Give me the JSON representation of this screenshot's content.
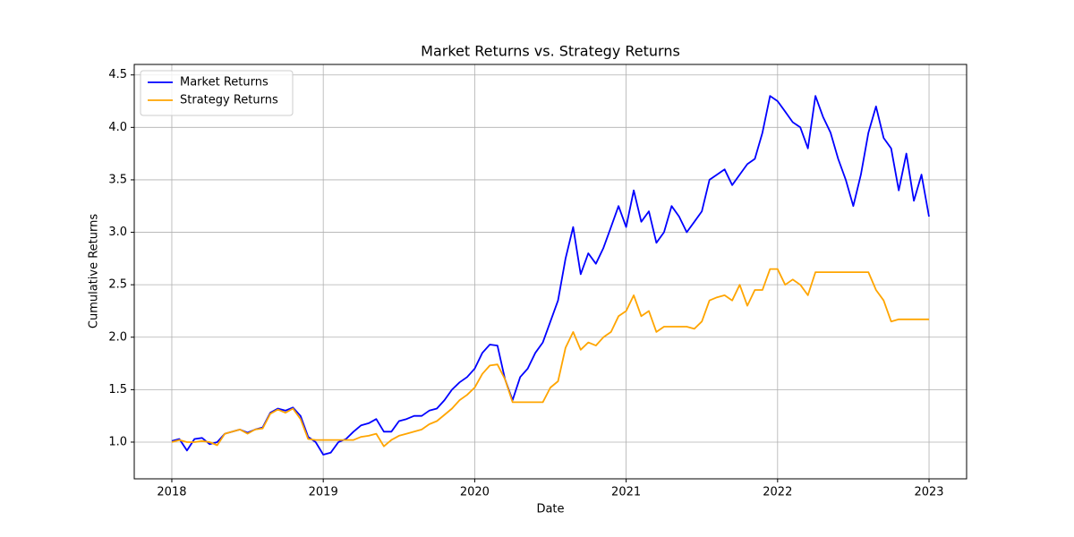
{
  "chart_data": {
    "type": "line",
    "title": "Market Returns vs. Strategy Returns",
    "x_label": "Date",
    "y_label": "Cumulative Returns",
    "x": [
      2018.0,
      2018.05,
      2018.1,
      2018.15,
      2018.2,
      2018.25,
      2018.3,
      2018.35,
      2018.4,
      2018.45,
      2018.5,
      2018.55,
      2018.6,
      2018.65,
      2018.7,
      2018.75,
      2018.8,
      2018.85,
      2018.9,
      2018.95,
      2019.0,
      2019.05,
      2019.1,
      2019.15,
      2019.2,
      2019.25,
      2019.3,
      2019.35,
      2019.4,
      2019.45,
      2019.5,
      2019.55,
      2019.6,
      2019.65,
      2019.7,
      2019.75,
      2019.8,
      2019.85,
      2019.9,
      2019.95,
      2020.0,
      2020.05,
      2020.1,
      2020.15,
      2020.2,
      2020.25,
      2020.3,
      2020.35,
      2020.4,
      2020.45,
      2020.5,
      2020.55,
      2020.6,
      2020.65,
      2020.7,
      2020.75,
      2020.8,
      2020.85,
      2020.9,
      2020.95,
      2021.0,
      2021.05,
      2021.1,
      2021.15,
      2021.2,
      2021.25,
      2021.3,
      2021.35,
      2021.4,
      2021.45,
      2021.5,
      2021.55,
      2021.6,
      2021.65,
      2021.7,
      2021.75,
      2021.8,
      2021.85,
      2021.9,
      2021.95,
      2022.0,
      2022.05,
      2022.1,
      2022.15,
      2022.2,
      2022.25,
      2022.3,
      2022.35,
      2022.4,
      2022.45,
      2022.5,
      2022.55,
      2022.6,
      2022.65,
      2022.7,
      2022.75,
      2022.8,
      2022.85,
      2022.9,
      2022.95,
      2023.0
    ],
    "series": [
      {
        "name": "Market Returns",
        "color": "#0000ff",
        "values": [
          1.01,
          1.03,
          0.92,
          1.03,
          1.04,
          0.98,
          1.0,
          1.08,
          1.1,
          1.12,
          1.09,
          1.12,
          1.14,
          1.28,
          1.32,
          1.3,
          1.33,
          1.25,
          1.05,
          1.0,
          0.88,
          0.9,
          1.0,
          1.03,
          1.1,
          1.16,
          1.18,
          1.22,
          1.1,
          1.1,
          1.2,
          1.22,
          1.25,
          1.25,
          1.3,
          1.32,
          1.4,
          1.5,
          1.57,
          1.62,
          1.7,
          1.85,
          1.93,
          1.92,
          1.6,
          1.4,
          1.62,
          1.7,
          1.85,
          1.95,
          2.15,
          2.35,
          2.75,
          3.05,
          2.6,
          2.8,
          2.7,
          2.85,
          3.05,
          3.25,
          3.05,
          3.4,
          3.1,
          3.2,
          2.9,
          3.0,
          3.25,
          3.15,
          3.0,
          3.1,
          3.2,
          3.5,
          3.55,
          3.6,
          3.45,
          3.55,
          3.65,
          3.7,
          3.95,
          4.3,
          4.25,
          4.15,
          4.05,
          4.0,
          3.8,
          4.3,
          4.1,
          3.95,
          3.7,
          3.5,
          3.25,
          3.55,
          3.95,
          4.2,
          3.9,
          3.8,
          3.4,
          3.75,
          3.3,
          3.55,
          3.15
        ]
      },
      {
        "name": "Strategy Returns",
        "color": "#ffa500",
        "values": [
          1.0,
          1.02,
          1.0,
          1.0,
          1.01,
          1.0,
          0.97,
          1.08,
          1.1,
          1.12,
          1.08,
          1.12,
          1.13,
          1.27,
          1.31,
          1.28,
          1.32,
          1.22,
          1.03,
          1.02,
          1.02,
          1.02,
          1.02,
          1.02,
          1.02,
          1.05,
          1.06,
          1.08,
          0.96,
          1.02,
          1.06,
          1.08,
          1.1,
          1.12,
          1.17,
          1.2,
          1.26,
          1.32,
          1.4,
          1.45,
          1.52,
          1.65,
          1.73,
          1.74,
          1.6,
          1.38,
          1.38,
          1.38,
          1.38,
          1.38,
          1.52,
          1.58,
          1.9,
          2.05,
          1.88,
          1.95,
          1.92,
          2.0,
          2.05,
          2.2,
          2.25,
          2.4,
          2.2,
          2.25,
          2.05,
          2.1,
          2.1,
          2.1,
          2.1,
          2.08,
          2.15,
          2.35,
          2.38,
          2.4,
          2.35,
          2.5,
          2.3,
          2.45,
          2.45,
          2.65,
          2.65,
          2.5,
          2.55,
          2.5,
          2.4,
          2.62,
          2.62,
          2.62,
          2.62,
          2.62,
          2.62,
          2.62,
          2.62,
          2.45,
          2.35,
          2.15,
          2.17,
          2.17,
          2.17,
          2.17,
          2.17
        ]
      }
    ],
    "xlim": [
      2017.752,
      2023.248
    ],
    "xticks": [
      2018,
      2019,
      2020,
      2021,
      2022,
      2023
    ],
    "ylim": [
      0.65,
      4.6
    ],
    "yticks": [
      {
        "value": 1,
        "label": "1.0"
      },
      1.5,
      {
        "value": 2,
        "label": "2.0"
      },
      2.5,
      {
        "value": 3,
        "label": "3.0"
      },
      3.5,
      {
        "value": 4,
        "label": "4.0"
      },
      4.5
    ],
    "grid": true,
    "legend": "upper-left"
  }
}
